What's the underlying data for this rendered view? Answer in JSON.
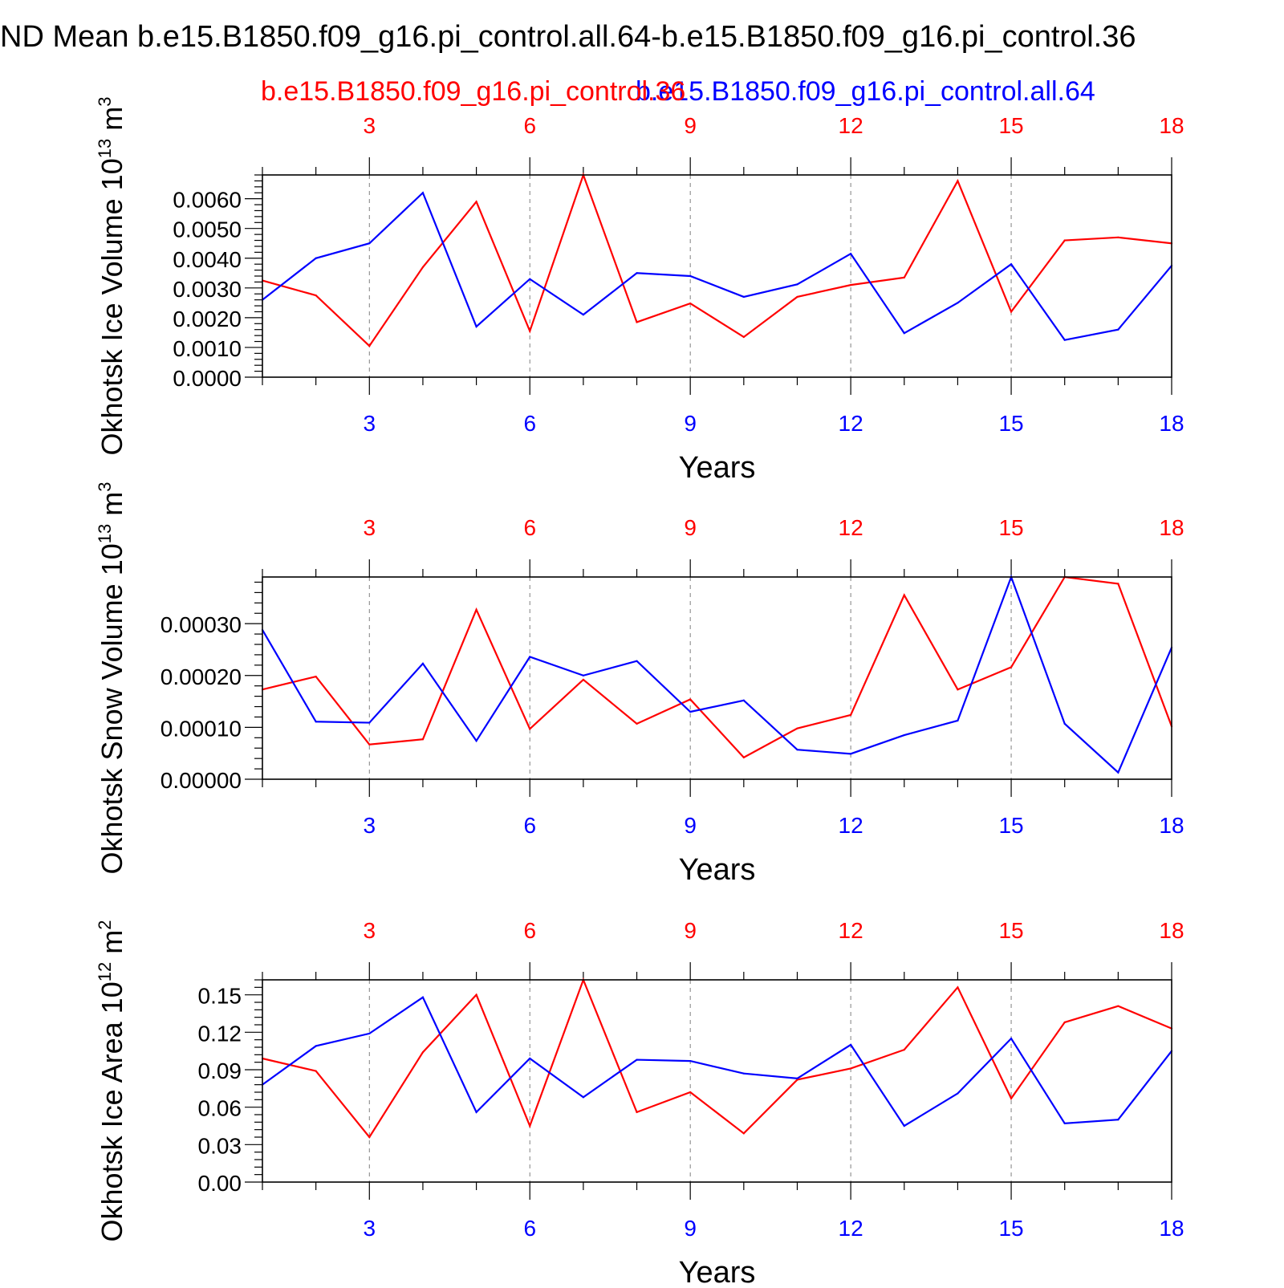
{
  "page_title": "ND Mean b.e15.B1850.f09_g16.pi_control.all.64-b.e15.B1850.f09_g16.pi_control.36",
  "legend": {
    "red_label": "b.e15.B1850.f09_g16.pi_control.36",
    "blue_label": "b.e15.B1850.f09_g16.pi_control.all.64"
  },
  "colors": {
    "red": "#ff0000",
    "blue": "#0000ff",
    "axis": "#000000",
    "grid": "#808080"
  },
  "chart_data": [
    {
      "type": "line",
      "title": "",
      "xlabel": "Years",
      "ylabel": "Okhotsk Ice Volume",
      "ylabel_unit_base": "10",
      "ylabel_unit_exp": "13",
      "ylabel_unit_name": "m",
      "ylabel_unit_pow": "3",
      "xlim": [
        1,
        18
      ],
      "ylim": [
        0,
        0.0068
      ],
      "x_ticks": [
        "3",
        "6",
        "9",
        "12",
        "15",
        "18"
      ],
      "y_ticks": [
        "0.0000",
        "0.0010",
        "0.0020",
        "0.0030",
        "0.0040",
        "0.0050",
        "0.0060"
      ],
      "x": [
        1,
        2,
        3,
        4,
        5,
        6,
        7,
        8,
        9,
        10,
        11,
        12,
        13,
        14,
        15,
        16,
        17,
        18
      ],
      "series": [
        {
          "name": "b.e15.B1850.f09_g16.pi_control.36",
          "color": "red",
          "values": [
            0.00325,
            0.00275,
            0.00105,
            0.0037,
            0.0059,
            0.00155,
            0.0068,
            0.00185,
            0.00248,
            0.00135,
            0.0027,
            0.0031,
            0.00335,
            0.0066,
            0.0022,
            0.0046,
            0.0047,
            0.0045
          ]
        },
        {
          "name": "b.e15.B1850.f09_g16.pi_control.all.64",
          "color": "blue",
          "values": [
            0.0026,
            0.004,
            0.0045,
            0.0062,
            0.0017,
            0.0033,
            0.0021,
            0.0035,
            0.0034,
            0.0027,
            0.00312,
            0.00415,
            0.00148,
            0.0025,
            0.0038,
            0.00125,
            0.0016,
            0.00375
          ]
        }
      ]
    },
    {
      "type": "line",
      "title": "",
      "xlabel": "Years",
      "ylabel": "Okhotsk Snow Volume",
      "ylabel_unit_base": "10",
      "ylabel_unit_exp": "13",
      "ylabel_unit_name": "m",
      "ylabel_unit_pow": "3",
      "xlim": [
        1,
        18
      ],
      "ylim": [
        0,
        0.00039
      ],
      "x_ticks": [
        "3",
        "6",
        "9",
        "12",
        "15",
        "18"
      ],
      "y_ticks": [
        "0.00000",
        "0.00010",
        "0.00020",
        "0.00030"
      ],
      "x": [
        1,
        2,
        3,
        4,
        5,
        6,
        7,
        8,
        9,
        10,
        11,
        12,
        13,
        14,
        15,
        16,
        17,
        18
      ],
      "series": [
        {
          "name": "b.e15.B1850.f09_g16.pi_control.36",
          "color": "red",
          "values": [
            0.000173,
            0.000198,
            6.7e-05,
            7.7e-05,
            0.000327,
            9.7e-05,
            0.000192,
            0.000107,
            0.000154,
            4.2e-05,
            9.8e-05,
            0.000124,
            0.000355,
            0.000173,
            0.000216,
            0.00039,
            0.000377,
            0.000102
          ]
        },
        {
          "name": "b.e15.B1850.f09_g16.pi_control.all.64",
          "color": "blue",
          "values": [
            0.000288,
            0.000111,
            0.000109,
            0.000223,
            7.4e-05,
            0.000236,
            0.0002,
            0.000228,
            0.00013,
            0.000152,
            5.7e-05,
            4.9e-05,
            8.5e-05,
            0.000113,
            0.00039,
            0.000107,
            1.3e-05,
            0.000254
          ]
        }
      ]
    },
    {
      "type": "line",
      "title": "",
      "xlabel": "Years",
      "ylabel": "Okhotsk Ice Area",
      "ylabel_unit_base": "10",
      "ylabel_unit_exp": "12",
      "ylabel_unit_name": "m",
      "ylabel_unit_pow": "2",
      "xlim": [
        1,
        18
      ],
      "ylim": [
        0,
        0.162
      ],
      "x_ticks": [
        "3",
        "6",
        "9",
        "12",
        "15",
        "18"
      ],
      "y_ticks": [
        "0.00",
        "0.03",
        "0.06",
        "0.09",
        "0.12",
        "0.15"
      ],
      "x": [
        1,
        2,
        3,
        4,
        5,
        6,
        7,
        8,
        9,
        10,
        11,
        12,
        13,
        14,
        15,
        16,
        17,
        18
      ],
      "series": [
        {
          "name": "b.e15.B1850.f09_g16.pi_control.36",
          "color": "red",
          "values": [
            0.099,
            0.089,
            0.036,
            0.104,
            0.15,
            0.045,
            0.162,
            0.056,
            0.072,
            0.039,
            0.082,
            0.091,
            0.106,
            0.156,
            0.067,
            0.128,
            0.141,
            0.123
          ]
        },
        {
          "name": "b.e15.B1850.f09_g16.pi_control.all.64",
          "color": "blue",
          "values": [
            0.078,
            0.109,
            0.119,
            0.148,
            0.056,
            0.099,
            0.068,
            0.098,
            0.097,
            0.087,
            0.083,
            0.11,
            0.045,
            0.071,
            0.115,
            0.047,
            0.05,
            0.105
          ]
        }
      ]
    }
  ]
}
